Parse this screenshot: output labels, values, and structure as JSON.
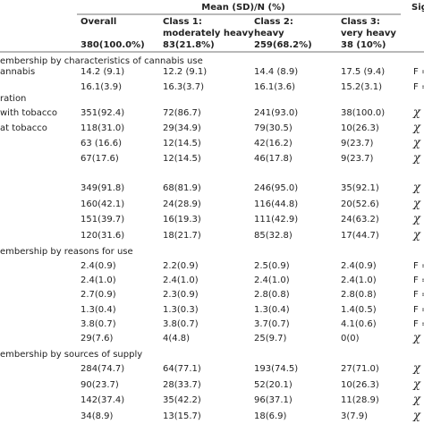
{
  "header": {
    "title": "Mean (SD)/N (%)",
    "sig": "Sig",
    "columns": [
      {
        "name": "Overall",
        "count": "380(100.0%)"
      },
      {
        "name": "Class 1:",
        "sub": "moderately heavy",
        "count": "83(21.8%)"
      },
      {
        "name": "Class 2:",
        "sub": "heavy",
        "count": "259(68.2%)"
      },
      {
        "name": "Class 3:",
        "sub": "very heavy",
        "count": "38 (10%)"
      }
    ]
  },
  "rows": [
    {
      "section": "embership by characteristics of cannabis use"
    },
    {
      "label": "annabis",
      "values": [
        "14.2 (9.1)",
        "12.2 (9.1)",
        "14.4 (8.9)",
        "17.5 (9.4)"
      ],
      "sig": "F ="
    },
    {
      "values": [
        "16.1(3.9)",
        "16.3(3.7)",
        "16.1(3.6)",
        "15.2(3.1)"
      ],
      "sig": "F ="
    },
    {
      "label": "ration"
    },
    {
      "label": "with tobacco",
      "values": [
        "351(92.4)",
        "72(86.7)",
        "241(93.0)",
        "38(100.0)"
      ],
      "sig": "χ"
    },
    {
      "label": "at tobacco",
      "values": [
        "118(31.0)",
        "29(34.9)",
        "79(30.5)",
        "10(26.3)"
      ],
      "sig": "χ"
    },
    {
      "values": [
        "63 (16.6)",
        "12(14.5)",
        "42(16.2)",
        "9(23.7)"
      ],
      "sig": "χ"
    },
    {
      "values": [
        "67(17.6)",
        "12(14.5)",
        "46(17.8)",
        "9(23.7)"
      ],
      "sig": "χ"
    },
    {
      "values": [
        "349(91.8)",
        "68(81.9)",
        "246(95.0)",
        "35(92.1)"
      ],
      "sig": "χ"
    },
    {
      "values": [
        "160(42.1)",
        "24(28.9)",
        "116(44.8)",
        "20(52.6)"
      ],
      "sig": "χ"
    },
    {
      "values": [
        "151(39.7)",
        "16(19.3)",
        "111(42.9)",
        "24(63.2)"
      ],
      "sig": "χ"
    },
    {
      "values": [
        "120(31.6)",
        "18(21.7)",
        "85(32.8)",
        "17(44.7)"
      ],
      "sig": "χ"
    },
    {
      "section": "embership by reasons for use"
    },
    {
      "values": [
        "2.4(0.9)",
        "2.2(0.9)",
        "2.5(0.9)",
        "2.4(0.9)"
      ],
      "sig": "F ="
    },
    {
      "values": [
        "2.4(1.0)",
        "2.4(1.0)",
        "2.4(1.0)",
        "2.4(1.0)"
      ],
      "sig": "F ="
    },
    {
      "values": [
        "2.7(0.9)",
        "2.3(0.9)",
        "2.8(0.8)",
        "2.8(0.8)"
      ],
      "sig": "F ="
    },
    {
      "values": [
        "1.3(0.4)",
        "1.3(0.3)",
        "1.3(0.4)",
        "1.4(0.5)"
      ],
      "sig": "F ="
    },
    {
      "values": [
        "3.8(0.7)",
        "3.8(0.7)",
        "3.7(0.7)",
        "4.1(0.6)"
      ],
      "sig": "F ="
    },
    {
      "values": [
        "29(7.6)",
        "4(4.8)",
        "25(9.7)",
        "0(0)"
      ],
      "sig": "χ"
    },
    {
      "section": "embership by sources of supply"
    },
    {
      "values": [
        "284(74.7)",
        "64(77.1)",
        "193(74.5)",
        "27(71.0)"
      ],
      "sig": "χ"
    },
    {
      "values": [
        "90(23.7)",
        "28(33.7)",
        "52(20.1)",
        "10(26.3)"
      ],
      "sig": "χ"
    },
    {
      "values": [
        "142(37.4)",
        "35(42.2)",
        "96(37.1)",
        "11(28.9)"
      ],
      "sig": "χ"
    },
    {
      "values": [
        "34(8.9)",
        "13(15.7)",
        "18(6.9)",
        "3(7.9)"
      ],
      "sig": "χ"
    }
  ]
}
